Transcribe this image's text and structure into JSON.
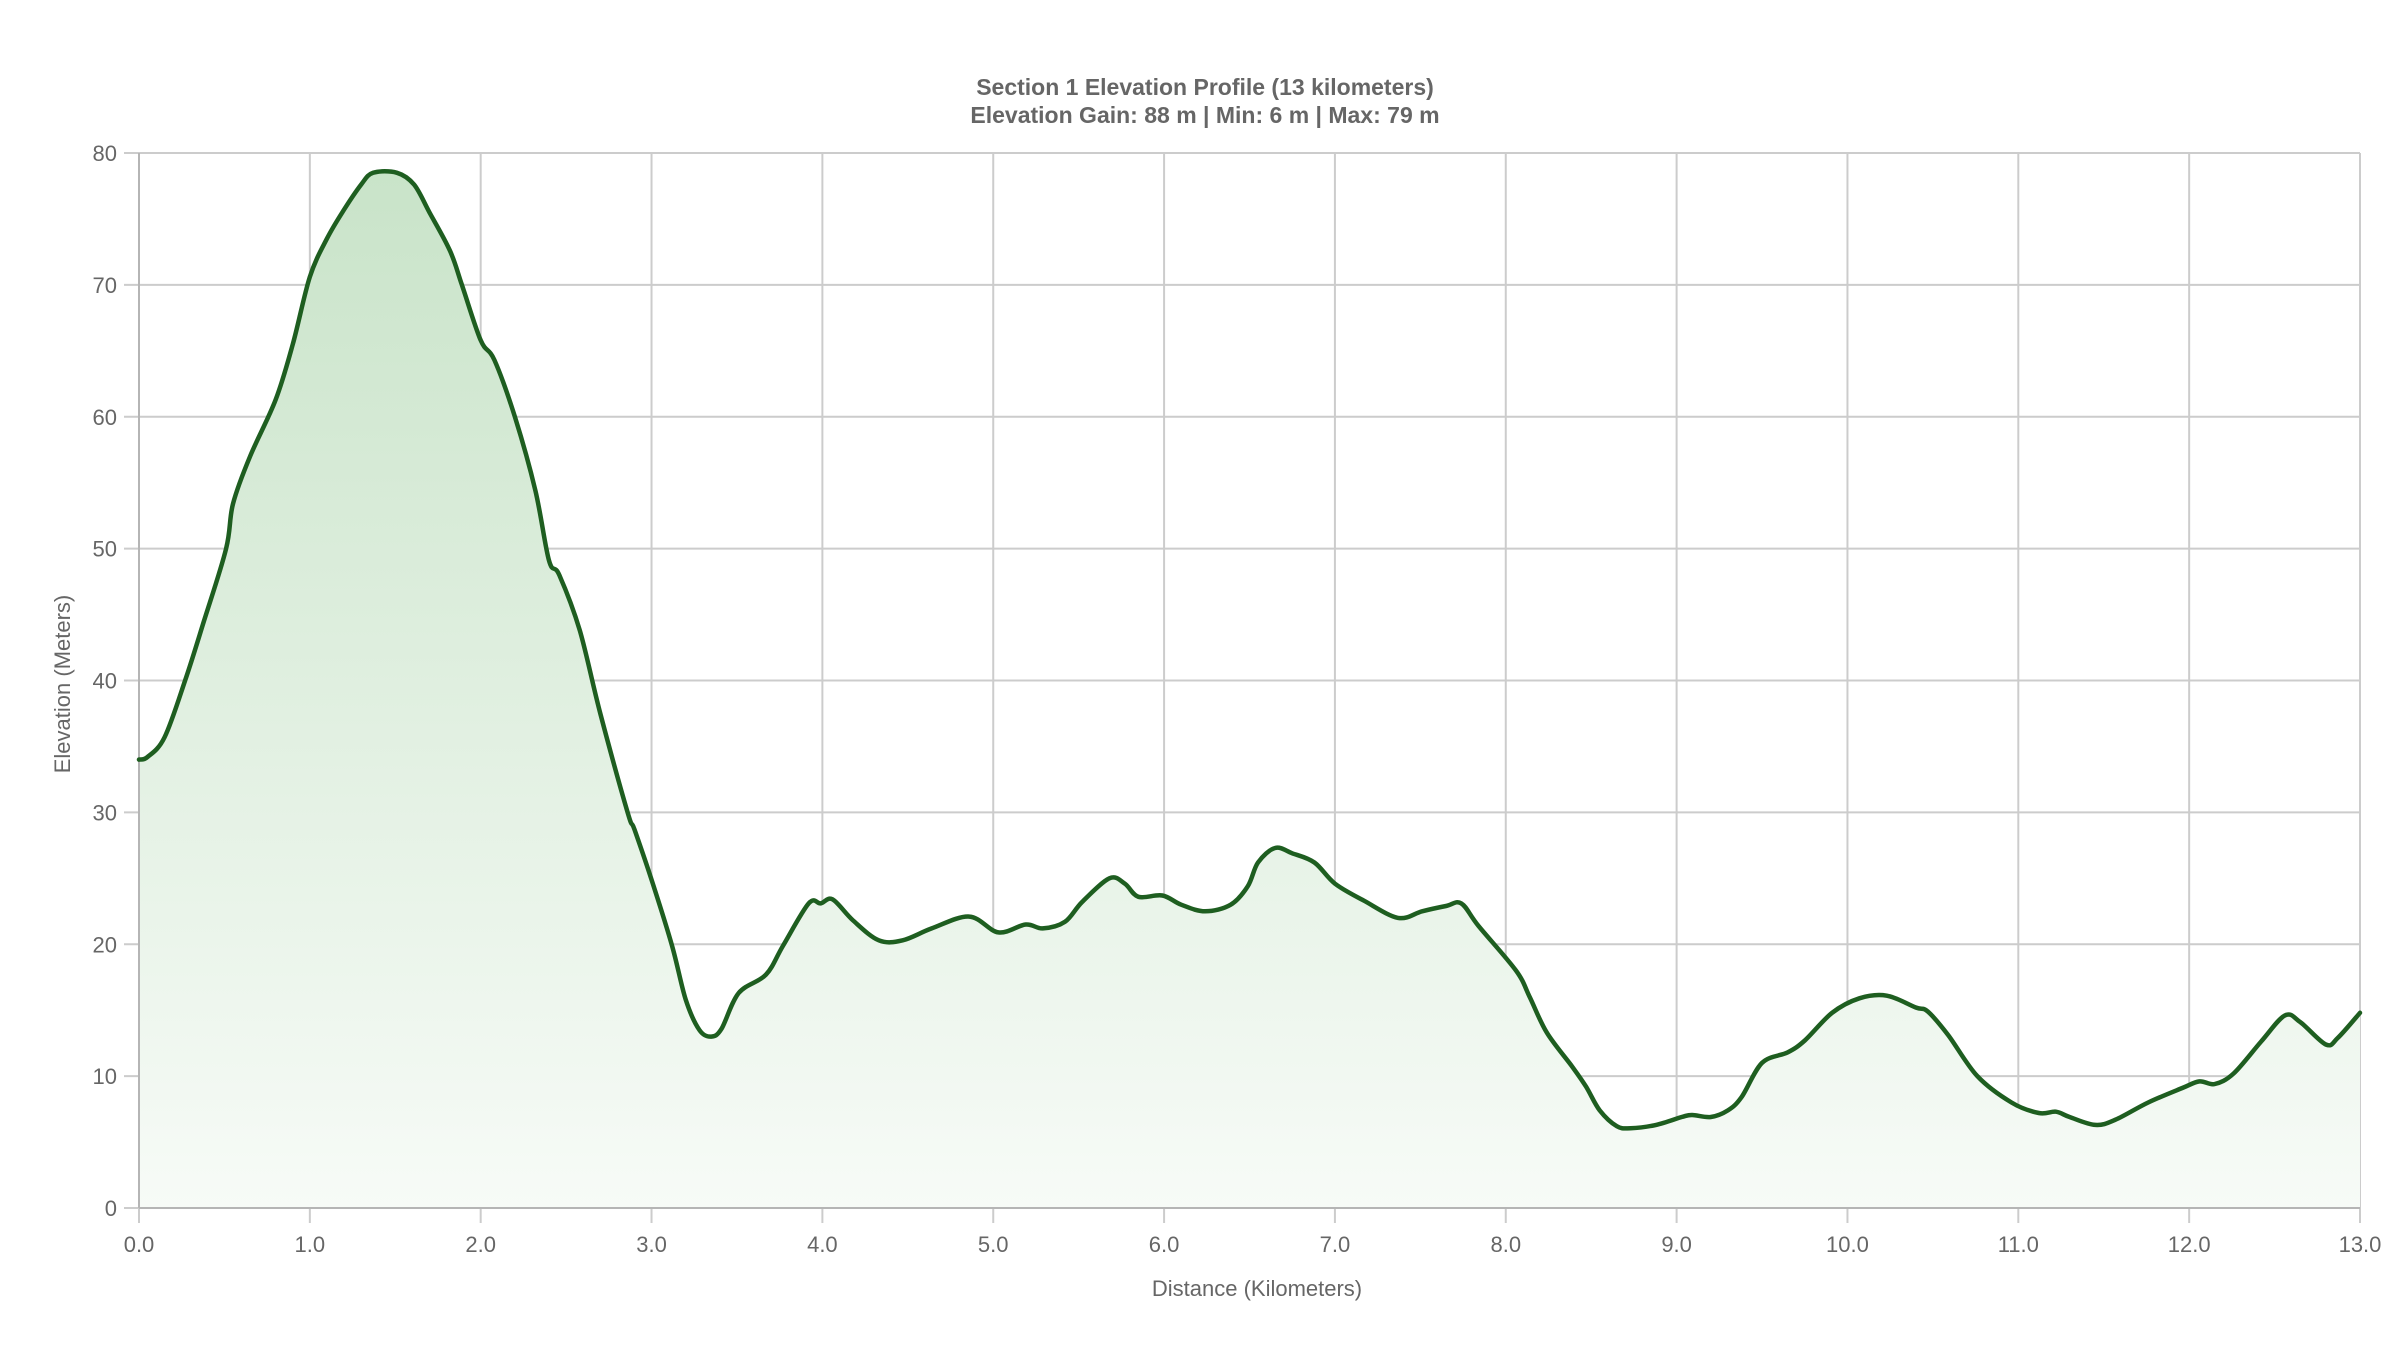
{
  "chart_data": {
    "type": "area",
    "title": "Section 1 Elevation Profile (13 kilometers)",
    "subtitle": "Elevation Gain: 88 m | Min: 6 m | Max: 79 m",
    "xlabel": "Distance (Kilometers)",
    "ylabel": "Elevation (Meters)",
    "xlim": [
      0,
      13
    ],
    "ylim": [
      0,
      80
    ],
    "x_ticks": [
      "0.0",
      "1.0",
      "2.0",
      "3.0",
      "4.0",
      "5.0",
      "6.0",
      "7.0",
      "8.0",
      "9.0",
      "10.0",
      "11.0",
      "12.0",
      "13.0"
    ],
    "y_ticks": [
      "0",
      "10",
      "20",
      "30",
      "40",
      "50",
      "60",
      "70",
      "80"
    ],
    "grid": true,
    "legend": null,
    "line_color": "#1e5e20",
    "fill_top_color": "#c8e3c8",
    "fill_bottom_color": "#f7fbf7",
    "series": [
      {
        "name": "Elevation",
        "x": [
          0.0,
          0.05,
          0.15,
          0.27,
          0.38,
          0.51,
          0.55,
          0.65,
          0.8,
          0.9,
          1.0,
          1.1,
          1.2,
          1.3,
          1.37,
          1.51,
          1.61,
          1.7,
          1.82,
          1.89,
          2.0,
          2.08,
          2.2,
          2.32,
          2.4,
          2.46,
          2.58,
          2.7,
          2.86,
          2.9,
          3.0,
          3.12,
          3.2,
          3.28,
          3.35,
          3.41,
          3.51,
          3.67,
          3.77,
          3.92,
          3.99,
          4.06,
          4.18,
          4.33,
          4.47,
          4.64,
          4.86,
          5.03,
          5.19,
          5.29,
          5.42,
          5.52,
          5.68,
          5.77,
          5.85,
          5.99,
          6.1,
          6.24,
          6.39,
          6.49,
          6.55,
          6.65,
          6.75,
          6.88,
          7.0,
          7.17,
          7.37,
          7.51,
          7.65,
          7.74,
          7.84,
          8.06,
          8.14,
          8.24,
          8.39,
          8.47,
          8.55,
          8.65,
          8.73,
          8.88,
          9.03,
          9.09,
          9.2,
          9.3,
          9.38,
          9.5,
          9.65,
          9.75,
          9.91,
          10.07,
          10.23,
          10.4,
          10.47,
          10.59,
          10.76,
          10.96,
          11.12,
          11.22,
          11.3,
          11.45,
          11.57,
          11.76,
          11.96,
          12.06,
          12.15,
          12.26,
          12.42,
          12.56,
          12.65,
          12.8,
          12.87,
          13.0
        ],
        "y": [
          34.0,
          34.2,
          35.7,
          40.0,
          44.5,
          50.0,
          53.4,
          57.0,
          61.3,
          65.5,
          70.6,
          73.5,
          75.7,
          77.6,
          78.5,
          78.5,
          77.6,
          75.5,
          72.6,
          70.0,
          65.8,
          64.3,
          60.0,
          54.4,
          49.1,
          48.0,
          43.8,
          37.5,
          30.0,
          28.7,
          24.9,
          19.9,
          15.8,
          13.5,
          13.0,
          13.6,
          16.3,
          17.7,
          19.9,
          23.1,
          23.1,
          23.4,
          21.8,
          20.3,
          20.3,
          21.2,
          22.1,
          20.9,
          21.5,
          21.2,
          21.7,
          23.2,
          25.0,
          24.6,
          23.6,
          23.7,
          23.0,
          22.5,
          23.0,
          24.4,
          26.2,
          27.3,
          26.9,
          26.2,
          24.6,
          23.3,
          22.0,
          22.5,
          22.9,
          23.1,
          21.4,
          18.0,
          16.0,
          13.3,
          10.7,
          9.2,
          7.4,
          6.2,
          6.05,
          6.3,
          6.9,
          7.05,
          6.9,
          7.4,
          8.4,
          11.0,
          11.8,
          12.7,
          14.8,
          15.9,
          16.1,
          15.2,
          14.9,
          13.1,
          10.0,
          8.0,
          7.2,
          7.3,
          6.9,
          6.3,
          6.7,
          8.0,
          9.1,
          9.6,
          9.4,
          10.2,
          12.6,
          14.6,
          14.1,
          12.4,
          12.9,
          14.8
        ]
      }
    ]
  }
}
